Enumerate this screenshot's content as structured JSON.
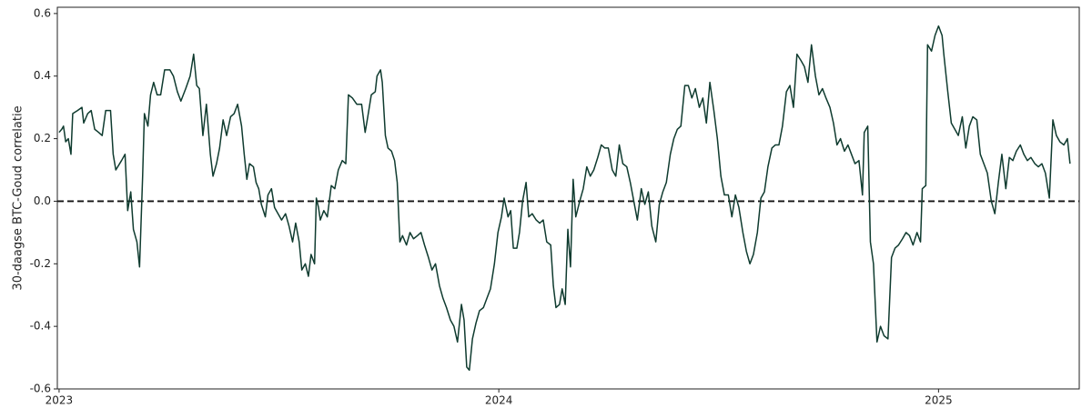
{
  "chart_data": {
    "type": "line",
    "ylabel": "30-daagse BTC-Goud correlatie",
    "xlim": [
      2022.996,
      2025.32
    ],
    "xticks": [
      2023,
      2024,
      2025
    ],
    "ylim": [
      -0.6,
      0.62
    ],
    "yticks": [
      -0.6,
      -0.4,
      -0.2,
      {
        "value": 0,
        "label": "0.0"
      },
      0.2,
      0.4,
      0.6
    ],
    "reference_line": 0,
    "grid": false,
    "x": [
      2023.0,
      2023.006,
      2023.01,
      2023.015,
      2023.021,
      2023.027,
      2023.031,
      2023.042,
      2023.052,
      2023.056,
      2023.065,
      2023.073,
      2023.081,
      2023.09,
      2023.098,
      2023.106,
      2023.117,
      2023.123,
      2023.129,
      2023.142,
      2023.15,
      2023.156,
      2023.163,
      2023.169,
      2023.177,
      2023.183,
      2023.19,
      2023.194,
      2023.202,
      2023.208,
      2023.215,
      2023.223,
      2023.231,
      2023.24,
      2023.252,
      2023.26,
      2023.269,
      2023.277,
      2023.288,
      2023.298,
      2023.306,
      2023.313,
      2023.319,
      2023.327,
      2023.335,
      2023.344,
      2023.35,
      2023.358,
      2023.365,
      2023.373,
      2023.381,
      2023.39,
      2023.398,
      2023.406,
      2023.415,
      2023.421,
      2023.427,
      2023.433,
      2023.442,
      2023.448,
      2023.454,
      2023.46,
      2023.469,
      2023.475,
      2023.483,
      2023.49,
      2023.498,
      2023.506,
      2023.515,
      2023.523,
      2023.531,
      2023.538,
      2023.546,
      2023.552,
      2023.56,
      2023.567,
      2023.573,
      2023.581,
      2023.585,
      2023.59,
      2023.594,
      2023.602,
      2023.61,
      2023.619,
      2023.627,
      2023.635,
      2023.644,
      2023.652,
      2023.658,
      2023.667,
      2023.677,
      2023.688,
      2023.696,
      2023.702,
      2023.71,
      2023.719,
      2023.723,
      2023.731,
      2023.735,
      2023.742,
      2023.748,
      2023.756,
      2023.763,
      2023.769,
      2023.775,
      2023.781,
      2023.79,
      2023.798,
      2023.806,
      2023.815,
      2023.823,
      2023.831,
      2023.84,
      2023.848,
      2023.856,
      2023.865,
      2023.873,
      2023.881,
      2023.89,
      2023.898,
      2023.906,
      2023.915,
      2023.921,
      2023.927,
      2023.933,
      2023.94,
      2023.948,
      2023.956,
      2023.965,
      2023.973,
      2023.981,
      2023.99,
      2023.998,
      2024.006,
      2024.012,
      2024.021,
      2024.027,
      2024.033,
      2024.041,
      2024.047,
      2024.054,
      2024.062,
      2024.068,
      2024.076,
      2024.085,
      2024.093,
      2024.101,
      2024.109,
      2024.118,
      2024.124,
      2024.13,
      2024.138,
      2024.144,
      2024.151,
      2024.157,
      2024.163,
      2024.169,
      2024.175,
      2024.184,
      2024.192,
      2024.2,
      2024.208,
      2024.216,
      2024.225,
      2024.233,
      2024.241,
      2024.249,
      2024.258,
      2024.266,
      2024.274,
      2024.282,
      2024.291,
      2024.299,
      2024.307,
      2024.315,
      2024.324,
      2024.332,
      2024.34,
      2024.348,
      2024.357,
      2024.365,
      2024.373,
      2024.381,
      2024.39,
      2024.398,
      2024.406,
      2024.414,
      2024.423,
      2024.431,
      2024.439,
      2024.447,
      2024.456,
      2024.464,
      2024.472,
      2024.48,
      2024.489,
      2024.497,
      2024.505,
      2024.513,
      2024.522,
      2024.53,
      2024.538,
      2024.546,
      2024.555,
      2024.563,
      2024.571,
      2024.579,
      2024.588,
      2024.596,
      2024.604,
      2024.612,
      2024.621,
      2024.629,
      2024.637,
      2024.645,
      2024.654,
      2024.662,
      2024.67,
      2024.678,
      2024.687,
      2024.695,
      2024.703,
      2024.711,
      2024.72,
      2024.728,
      2024.736,
      2024.744,
      2024.753,
      2024.761,
      2024.769,
      2024.777,
      2024.786,
      2024.794,
      2024.802,
      2024.81,
      2024.819,
      2024.827,
      2024.831,
      2024.839,
      2024.845,
      2024.852,
      2024.86,
      2024.868,
      2024.876,
      2024.885,
      2024.893,
      2024.901,
      2024.909,
      2024.918,
      2024.926,
      2024.934,
      2024.942,
      2024.951,
      2024.959,
      2024.963,
      2024.971,
      2024.975,
      2024.984,
      2024.992,
      2025.0,
      2025.008,
      2025.012,
      2025.021,
      2025.029,
      2025.037,
      2025.045,
      2025.054,
      2025.062,
      2025.07,
      2025.078,
      2025.087,
      2025.095,
      2025.103,
      2025.111,
      2025.12,
      2025.128,
      2025.136,
      2025.144,
      2025.153,
      2025.161,
      2025.169,
      2025.177,
      2025.186,
      2025.194,
      2025.202,
      2025.21,
      2025.219,
      2025.227,
      2025.235,
      2025.243,
      2025.252,
      2025.26,
      2025.268,
      2025.276,
      2025.285,
      2025.293,
      2025.299
    ],
    "series": [
      {
        "color": "#0f3b2f",
        "values": [
          0.22,
          0.23,
          0.24,
          0.19,
          0.2,
          0.15,
          0.28,
          0.29,
          0.3,
          0.25,
          0.28,
          0.29,
          0.23,
          0.22,
          0.21,
          0.29,
          0.29,
          0.15,
          0.1,
          0.13,
          0.15,
          -0.03,
          0.03,
          -0.09,
          -0.13,
          -0.21,
          0.08,
          0.28,
          0.24,
          0.34,
          0.38,
          0.34,
          0.34,
          0.42,
          0.42,
          0.4,
          0.35,
          0.32,
          0.36,
          0.4,
          0.47,
          0.37,
          0.36,
          0.21,
          0.31,
          0.15,
          0.08,
          0.12,
          0.17,
          0.26,
          0.21,
          0.27,
          0.28,
          0.31,
          0.24,
          0.15,
          0.07,
          0.12,
          0.11,
          0.06,
          0.04,
          -0.01,
          -0.05,
          0.02,
          0.04,
          -0.02,
          -0.04,
          -0.06,
          -0.04,
          -0.08,
          -0.13,
          -0.07,
          -0.13,
          -0.22,
          -0.2,
          -0.24,
          -0.17,
          -0.2,
          0.01,
          -0.02,
          -0.06,
          -0.03,
          -0.05,
          0.05,
          0.04,
          0.1,
          0.13,
          0.12,
          0.34,
          0.33,
          0.31,
          0.31,
          0.22,
          0.27,
          0.34,
          0.35,
          0.4,
          0.42,
          0.38,
          0.21,
          0.17,
          0.16,
          0.13,
          0.06,
          -0.13,
          -0.11,
          -0.14,
          -0.1,
          -0.12,
          -0.11,
          -0.1,
          -0.14,
          -0.18,
          -0.22,
          -0.2,
          -0.27,
          -0.31,
          -0.34,
          -0.38,
          -0.4,
          -0.45,
          -0.33,
          -0.38,
          -0.53,
          -0.54,
          -0.44,
          -0.39,
          -0.35,
          -0.34,
          -0.31,
          -0.28,
          -0.2,
          -0.1,
          -0.05,
          0.01,
          -0.05,
          -0.03,
          -0.15,
          -0.15,
          -0.1,
          0.0,
          0.06,
          -0.05,
          -0.04,
          -0.06,
          -0.07,
          -0.06,
          -0.13,
          -0.14,
          -0.27,
          -0.34,
          -0.33,
          -0.28,
          -0.33,
          -0.09,
          -0.21,
          0.07,
          -0.05,
          0.0,
          0.04,
          0.11,
          0.08,
          0.1,
          0.14,
          0.18,
          0.17,
          0.17,
          0.1,
          0.08,
          0.18,
          0.12,
          0.11,
          0.06,
          0.0,
          -0.06,
          0.04,
          -0.01,
          0.03,
          -0.08,
          -0.13,
          -0.01,
          0.03,
          0.06,
          0.15,
          0.2,
          0.23,
          0.24,
          0.37,
          0.37,
          0.33,
          0.36,
          0.3,
          0.33,
          0.25,
          0.38,
          0.29,
          0.2,
          0.08,
          0.02,
          0.02,
          -0.05,
          0.02,
          -0.02,
          -0.1,
          -0.16,
          -0.2,
          -0.17,
          -0.1,
          0.01,
          0.03,
          0.11,
          0.17,
          0.18,
          0.18,
          0.24,
          0.35,
          0.37,
          0.3,
          0.47,
          0.45,
          0.43,
          0.38,
          0.5,
          0.4,
          0.34,
          0.36,
          0.33,
          0.3,
          0.25,
          0.18,
          0.2,
          0.16,
          0.18,
          0.15,
          0.12,
          0.13,
          0.02,
          0.22,
          0.24,
          -0.13,
          -0.2,
          -0.45,
          -0.4,
          -0.43,
          -0.44,
          -0.18,
          -0.15,
          -0.14,
          -0.12,
          -0.1,
          -0.11,
          -0.14,
          -0.1,
          -0.13,
          0.04,
          0.05,
          0.5,
          0.48,
          0.53,
          0.56,
          0.53,
          0.47,
          0.35,
          0.25,
          0.23,
          0.21,
          0.27,
          0.17,
          0.24,
          0.27,
          0.26,
          0.15,
          0.12,
          0.09,
          0.0,
          -0.04,
          0.06,
          0.15,
          0.04,
          0.14,
          0.13,
          0.16,
          0.18,
          0.15,
          0.13,
          0.14,
          0.12,
          0.11,
          0.12,
          0.09,
          0.01,
          0.26,
          0.21,
          0.19,
          0.18,
          0.2,
          0.12
        ]
      }
    ]
  }
}
